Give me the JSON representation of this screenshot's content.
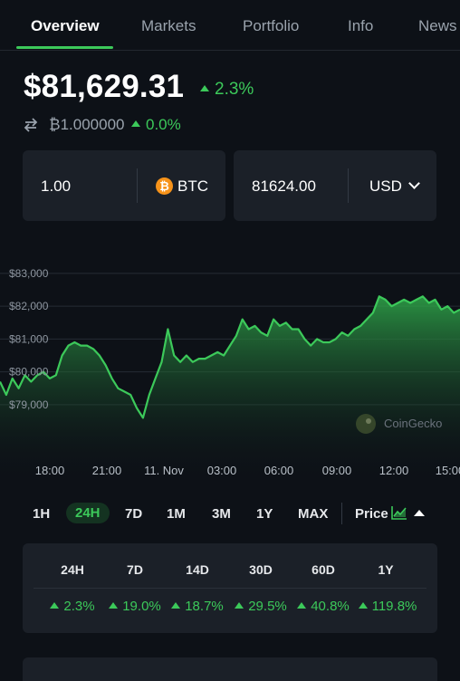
{
  "tabs": [
    {
      "label": "Overview",
      "active": true
    },
    {
      "label": "Markets",
      "active": false
    },
    {
      "label": "Portfolio",
      "active": false
    },
    {
      "label": "Info",
      "active": false
    },
    {
      "label": "News",
      "active": false
    }
  ],
  "summary": {
    "price": "$81,629.31",
    "change": "2.3%",
    "btc_price": "₿1.000000",
    "btc_change": "0.0%"
  },
  "converter": {
    "amount": "1.00",
    "crypto": "BTC",
    "fiat_amount": "81624.00",
    "fiat": "USD",
    "btc_icon_glyph": "₿"
  },
  "chart_data": {
    "type": "area",
    "y_ticks": [
      "$83,000",
      "$82,000",
      "$81,000",
      "$80,000",
      "$79,000"
    ],
    "x_ticks": [
      "18:00",
      "21:00",
      "11. Nov",
      "03:00",
      "06:00",
      "09:00",
      "12:00",
      "15:00"
    ],
    "ylim": [
      78500,
      83300
    ],
    "watermark": "CoinGecko",
    "color": "#3cc95a",
    "values": [
      79700,
      79300,
      79800,
      79500,
      79900,
      79700,
      79900,
      80000,
      79800,
      79900,
      80500,
      80800,
      80900,
      80800,
      80800,
      80700,
      80500,
      80200,
      79800,
      79500,
      79400,
      79300,
      78900,
      78600,
      79300,
      79800,
      80300,
      81300,
      80500,
      80300,
      80500,
      80300,
      80400,
      80400,
      80500,
      80600,
      80500,
      80800,
      81100,
      81600,
      81300,
      81400,
      81200,
      81100,
      81600,
      81400,
      81500,
      81300,
      81300,
      81000,
      80800,
      81000,
      80900,
      80900,
      81000,
      81200,
      81100,
      81300,
      81400,
      81600,
      81800,
      82300,
      82200,
      82000,
      82100,
      82200,
      82100,
      82200,
      82300,
      82100,
      82200,
      81900,
      82000,
      81800,
      81900
    ]
  },
  "ranges": {
    "items": [
      "1H",
      "24H",
      "7D",
      "1M",
      "3M",
      "1Y",
      "MAX"
    ],
    "active": "24H",
    "price_label": "Price"
  },
  "performance": {
    "headers": [
      "24H",
      "7D",
      "14D",
      "30D",
      "60D",
      "1Y"
    ],
    "values": [
      "2.3%",
      "19.0%",
      "18.7%",
      "29.5%",
      "40.8%",
      "119.8%"
    ]
  },
  "colors": {
    "background": "#0d1117",
    "card": "#1b2028",
    "accent": "#3cc95a",
    "muted": "#9aa3ad"
  }
}
